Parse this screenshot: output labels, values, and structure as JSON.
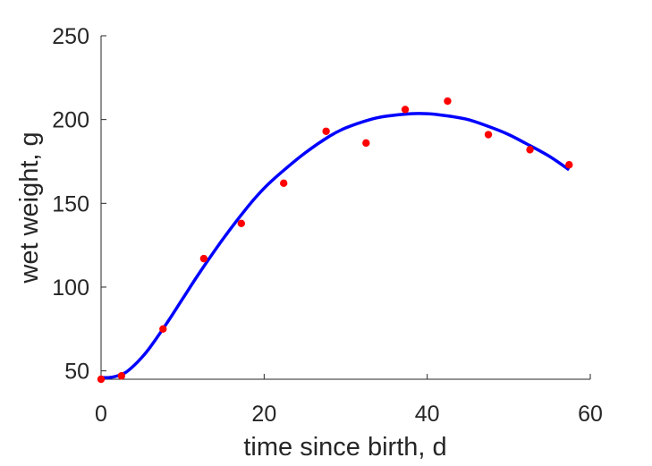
{
  "chart_data": {
    "type": "scatter",
    "title": "",
    "xlabel": "time since birth, d",
    "ylabel": "wet weight, g",
    "xlim": [
      0,
      60
    ],
    "ylim": [
      45,
      250
    ],
    "xticks": [
      0,
      20,
      40,
      60
    ],
    "yticks": [
      50,
      100,
      150,
      200,
      250
    ],
    "grid": false,
    "legend": "none",
    "series": [
      {
        "kind": "points",
        "color": "#ff0000",
        "x": [
          0,
          2.5,
          7.6,
          12.6,
          17.2,
          22.4,
          27.6,
          32.5,
          37.3,
          42.5,
          47.5,
          52.6,
          57.4
        ],
        "y": [
          45,
          47,
          75,
          117,
          138,
          162,
          193,
          186,
          206,
          211,
          191,
          182,
          173
        ]
      },
      {
        "kind": "curve",
        "color": "#0000ff",
        "x": [
          0,
          1,
          2,
          3,
          4,
          5,
          6,
          8,
          10,
          12,
          15,
          18,
          20,
          22,
          25,
          28,
          30,
          33,
          35,
          38,
          40,
          42,
          45,
          48,
          50,
          52,
          55,
          57.4
        ],
        "y": [
          46,
          46,
          47,
          49,
          53,
          58,
          64,
          78,
          93,
          108,
          129,
          148,
          159,
          168,
          180,
          190,
          195,
          200,
          202,
          203.5,
          203.5,
          202.5,
          200,
          195,
          191,
          186,
          178,
          170
        ]
      }
    ]
  }
}
